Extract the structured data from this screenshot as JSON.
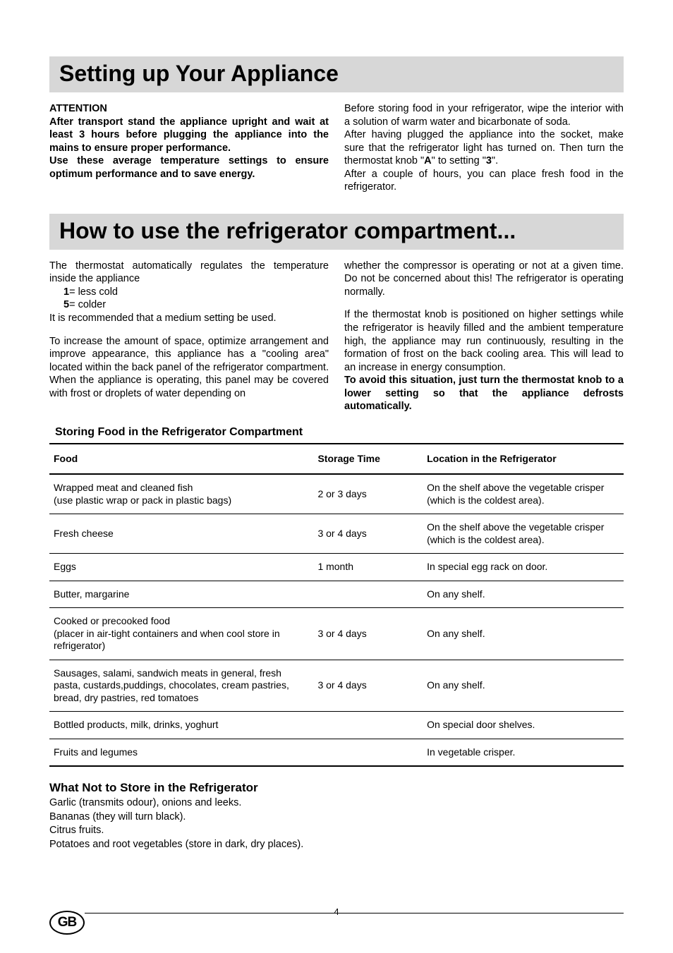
{
  "section1": {
    "heading": "Setting up Your Appliance",
    "attention_label": "ATTENTION",
    "attention_body": "After transport stand the appliance upright and wait at least 3 hours before plugging the appliance into the mains to ensure proper performance.",
    "attention_body2": "Use these average temperature settings to ensure optimum performance and to save energy.",
    "right_p1": "Before storing food in your refrigerator, wipe the interior with a solution of warm water and bicarbonate of soda.",
    "right_p2a": "After having plugged the appliance into the socket, make sure that the refrigerator light has turned on. Then turn the thermostat knob \"",
    "right_p2_A": "A",
    "right_p2b": "\" to setting \"",
    "right_p2_3": "3",
    "right_p2c": "\".",
    "right_p3": "After a couple of hours, you can place fresh food in the refrigerator."
  },
  "section2": {
    "heading": "How to use the refrigerator compartment...",
    "left_intro": "The thermostat automatically regulates the temperature inside the appliance",
    "key1": "1",
    "val1": " = less cold",
    "key5": "5",
    "val5": " = colder",
    "left_rec": "It is recommended that a medium setting be used.",
    "left_para2": "To increase the amount of space, optimize arrangement and improve appearance, this appliance has a \"cooling area\" located within the back panel of the refrigerator compartment. When the appliance is operating, this panel may be covered with frost or droplets of water depending on",
    "right_para1": "whether the compressor is operating or not at a given time. Do not be concerned about this! The refrigerator is operating normally.",
    "right_para2": "If the thermostat knob is positioned on higher settings while the refrigerator is heavily filled and the ambient temperature high, the appliance may run continuously, resulting in the formation of frost on the back cooling area. This will lead to an increase in energy consumption.",
    "right_bold": "To avoid this situation, just turn the thermostat knob to a lower setting so that the appliance defrosts automatically."
  },
  "table": {
    "title": "Storing Food in the Refrigerator Compartment",
    "headers": {
      "food": "Food",
      "time": "Storage Time",
      "loc": "Location in the Refrigerator"
    },
    "rows": [
      {
        "food": "Wrapped meat and cleaned fish\n(use plastic wrap or pack in plastic bags)",
        "time": "2 or 3 days",
        "loc": "On the shelf above the vegetable crisper (which is the coldest area)."
      },
      {
        "food": "Fresh cheese",
        "time": "3 or 4 days",
        "loc": "On the shelf above the vegetable crisper (which is the coldest area)."
      },
      {
        "food": "Eggs",
        "time": "1 month",
        "loc": "In special egg rack on door."
      },
      {
        "food": "Butter, margarine",
        "time": "",
        "loc": "On any shelf."
      },
      {
        "food": "Cooked or precooked food\n(placer in air-tight containers and  when cool store in refrigerator)",
        "time": "3 or 4 days",
        "loc": "On any shelf."
      },
      {
        "food": "Sausages, salami, sandwich meats in general, fresh pasta, custards,puddings, chocolates, cream pastries, bread, dry pastries, red tomatoes",
        "time": "3 or 4 days",
        "loc": "On any shelf."
      },
      {
        "food": "Bottled products, milk, drinks, yoghurt",
        "time": "",
        "loc": "On special door shelves."
      },
      {
        "food": "Fruits and legumes",
        "time": "",
        "loc": "In vegetable crisper."
      }
    ]
  },
  "notstore": {
    "heading": "What Not to Store in the Refrigerator",
    "lines": [
      "Garlic (transmits odour), onions and leeks.",
      "Bananas (they will turn black).",
      "Citrus fruits.",
      "Potatoes and root vegetables (store in dark, dry places)."
    ]
  },
  "footer": {
    "badge": "GB",
    "page_number": "4"
  },
  "style": {
    "background": "#ffffff",
    "heading_bg": "#d7d7d7",
    "text_color": "#000000",
    "body_fontsize": 14.5,
    "heading_fontsize": 32,
    "table_fontsize": 14,
    "rule_color": "#000000"
  }
}
